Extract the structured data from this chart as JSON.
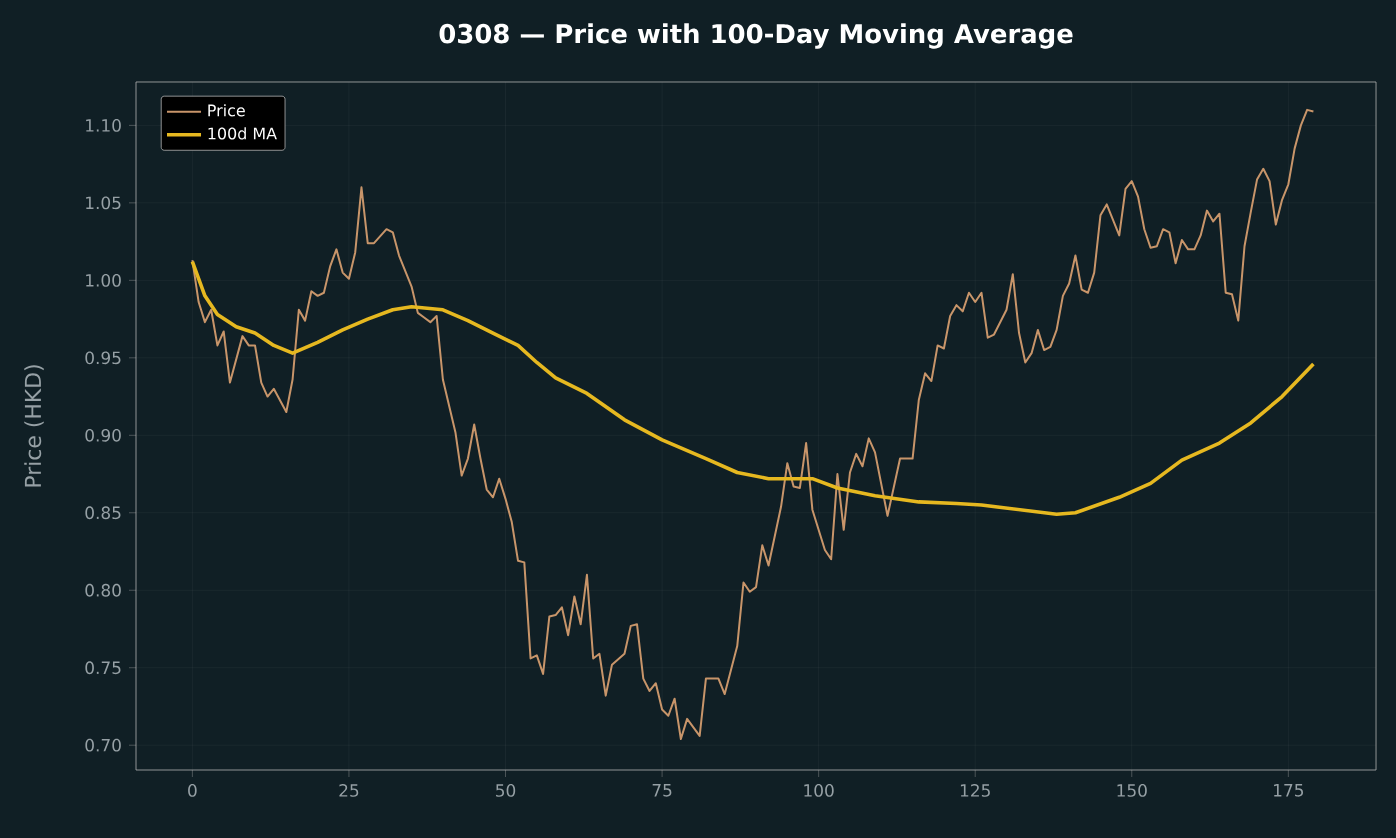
{
  "chart_data": {
    "type": "line",
    "title": "0308 — Price with 100-Day Moving Average",
    "ylabel": "Price (HKD)",
    "xlim": [
      -9,
      189
    ],
    "ylim": [
      0.684,
      1.128
    ],
    "xticks": [
      0,
      25,
      50,
      75,
      100,
      125,
      150,
      175
    ],
    "yticks": [
      {
        "value": 0.7,
        "label": "0.70"
      },
      {
        "value": 0.75,
        "label": "0.75"
      },
      {
        "value": 0.8,
        "label": "0.80"
      },
      {
        "value": 0.85,
        "label": "0.85"
      },
      {
        "value": 0.9,
        "label": "0.90"
      },
      {
        "value": 0.95,
        "label": "0.95"
      },
      {
        "value": 1.0,
        "label": "1.00"
      },
      {
        "value": 1.05,
        "label": "1.05"
      },
      {
        "value": 1.1,
        "label": "1.10"
      }
    ],
    "grid": true,
    "legend": "top left",
    "series": [
      {
        "name": "Price",
        "color": "#c8956a",
        "x": [
          0,
          1,
          2,
          3,
          4,
          5,
          6,
          8,
          9,
          10,
          11,
          12,
          13,
          15,
          16,
          17,
          18,
          19,
          20,
          21,
          22,
          23,
          24,
          25,
          26,
          27,
          28,
          29,
          31,
          32,
          33,
          35,
          36,
          37,
          38,
          39,
          40,
          42,
          43,
          44,
          45,
          46,
          47,
          48,
          49,
          50,
          51,
          52,
          53,
          54,
          55,
          56,
          57,
          58,
          59,
          60,
          61,
          62,
          63,
          64,
          65,
          66,
          67,
          69,
          70,
          71,
          72,
          73,
          74,
          75,
          76,
          77,
          78,
          79,
          81,
          82,
          84,
          85,
          87,
          88,
          89,
          90,
          91,
          92,
          94,
          95,
          96,
          97,
          98,
          99,
          101,
          102,
          103,
          104,
          105,
          106,
          107,
          108,
          109,
          111,
          113,
          115,
          116,
          117,
          118,
          119,
          120,
          121,
          122,
          123,
          124,
          125,
          126,
          127,
          128,
          130,
          131,
          132,
          133,
          134,
          135,
          136,
          137,
          138,
          139,
          140,
          141,
          142,
          143,
          144,
          145,
          146,
          147,
          148,
          149,
          150,
          151,
          152,
          153,
          154,
          155,
          156,
          157,
          158,
          159,
          160,
          161,
          162,
          163,
          164,
          165,
          166,
          167,
          168,
          169,
          170,
          171,
          172,
          173,
          174,
          175,
          176,
          177,
          178,
          179
        ],
        "values": [
          1.013,
          0.986,
          0.973,
          0.981,
          0.958,
          0.967,
          0.934,
          0.964,
          0.958,
          0.958,
          0.934,
          0.925,
          0.93,
          0.915,
          0.936,
          0.981,
          0.974,
          0.993,
          0.99,
          0.992,
          1.009,
          1.02,
          1.005,
          1.001,
          1.018,
          1.06,
          1.024,
          1.024,
          1.033,
          1.031,
          1.016,
          0.996,
          0.979,
          0.976,
          0.973,
          0.977,
          0.936,
          0.902,
          0.874,
          0.885,
          0.907,
          0.885,
          0.865,
          0.86,
          0.872,
          0.859,
          0.844,
          0.819,
          0.818,
          0.756,
          0.758,
          0.746,
          0.783,
          0.784,
          0.789,
          0.771,
          0.796,
          0.778,
          0.81,
          0.756,
          0.759,
          0.732,
          0.752,
          0.759,
          0.777,
          0.778,
          0.743,
          0.735,
          0.74,
          0.723,
          0.719,
          0.73,
          0.704,
          0.717,
          0.706,
          0.743,
          0.743,
          0.733,
          0.764,
          0.805,
          0.799,
          0.802,
          0.829,
          0.816,
          0.854,
          0.882,
          0.867,
          0.866,
          0.895,
          0.852,
          0.826,
          0.82,
          0.875,
          0.839,
          0.876,
          0.888,
          0.88,
          0.898,
          0.889,
          0.848,
          0.885,
          0.885,
          0.923,
          0.94,
          0.935,
          0.958,
          0.956,
          0.977,
          0.984,
          0.98,
          0.992,
          0.986,
          0.992,
          0.963,
          0.965,
          0.981,
          1.004,
          0.966,
          0.947,
          0.953,
          0.968,
          0.955,
          0.957,
          0.968,
          0.99,
          0.998,
          1.016,
          0.994,
          0.992,
          1.005,
          1.042,
          1.049,
          1.039,
          1.029,
          1.059,
          1.064,
          1.054,
          1.033,
          1.021,
          1.022,
          1.033,
          1.031,
          1.011,
          1.026,
          1.02,
          1.02,
          1.029,
          1.045,
          1.038,
          1.043,
          0.992,
          0.991,
          0.974,
          1.022,
          1.044,
          1.065,
          1.072,
          1.064,
          1.036,
          1.052,
          1.062,
          1.085,
          1.1,
          1.11,
          1.109
        ]
      },
      {
        "name": "100d MA",
        "color": "#e6b820",
        "x": [
          0,
          2,
          4,
          7,
          10,
          13,
          16,
          20,
          24,
          28,
          32,
          35,
          40,
          44,
          48,
          52,
          55,
          58,
          63,
          69,
          75,
          82,
          87,
          92,
          99,
          103,
          109,
          116,
          122,
          126,
          132,
          138,
          141,
          148,
          153,
          158,
          164,
          169,
          174,
          179
        ],
        "values": [
          1.012,
          0.99,
          0.978,
          0.97,
          0.966,
          0.958,
          0.953,
          0.96,
          0.968,
          0.975,
          0.981,
          0.983,
          0.981,
          0.974,
          0.966,
          0.958,
          0.947,
          0.937,
          0.927,
          0.91,
          0.897,
          0.885,
          0.876,
          0.872,
          0.872,
          0.866,
          0.861,
          0.857,
          0.856,
          0.855,
          0.852,
          0.849,
          0.85,
          0.86,
          0.869,
          0.884,
          0.895,
          0.908,
          0.925,
          0.946
        ]
      }
    ]
  }
}
